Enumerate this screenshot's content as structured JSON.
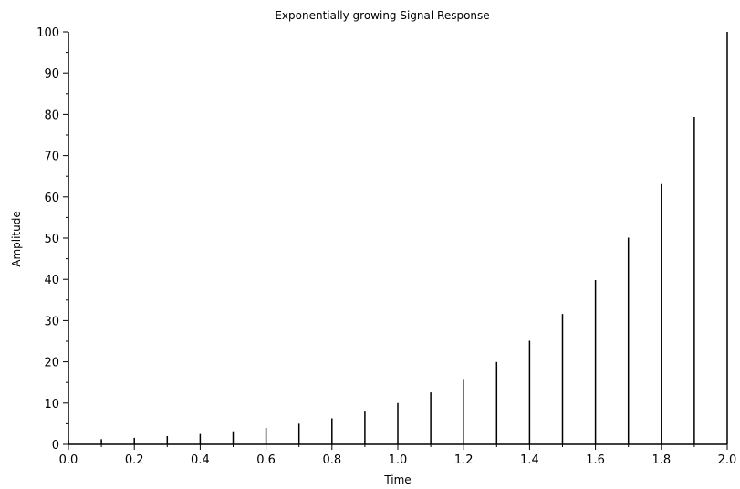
{
  "chart_data": {
    "type": "bar",
    "style": "stem",
    "title": "Exponentially growing Signal Response",
    "xlabel": "Time",
    "ylabel": "Amplitude",
    "xlim": [
      0,
      2
    ],
    "ylim": [
      0,
      100
    ],
    "x_ticks": [
      "0.0",
      "0.2",
      "0.4",
      "0.6",
      "0.8",
      "1.0",
      "1.2",
      "1.4",
      "1.6",
      "1.8",
      "2.0"
    ],
    "x_tick_values": [
      0,
      0.2,
      0.4,
      0.6,
      0.8,
      1.0,
      1.2,
      1.4,
      1.6,
      1.8,
      2.0
    ],
    "y_ticks": [
      "0",
      "10",
      "20",
      "30",
      "40",
      "50",
      "60",
      "70",
      "80",
      "90",
      "100"
    ],
    "y_tick_values": [
      0,
      10,
      20,
      30,
      40,
      50,
      60,
      70,
      80,
      90,
      100
    ],
    "y_minor_step": 5,
    "x_minor_step": 0.1,
    "grid": false,
    "legend": "none",
    "color": "#000000",
    "x": [
      0,
      0.1,
      0.2,
      0.3,
      0.4,
      0.5,
      0.6,
      0.7,
      0.8,
      0.9,
      1.0,
      1.1,
      1.2,
      1.3,
      1.4,
      1.5,
      1.6,
      1.7,
      1.8,
      1.9,
      2.0
    ],
    "values": [
      1.0,
      1.26,
      1.58,
      2.0,
      2.51,
      3.16,
      3.98,
      5.01,
      6.31,
      7.94,
      10.0,
      12.59,
      15.85,
      19.95,
      25.12,
      31.62,
      39.81,
      50.12,
      63.1,
      79.43,
      100.0
    ]
  }
}
